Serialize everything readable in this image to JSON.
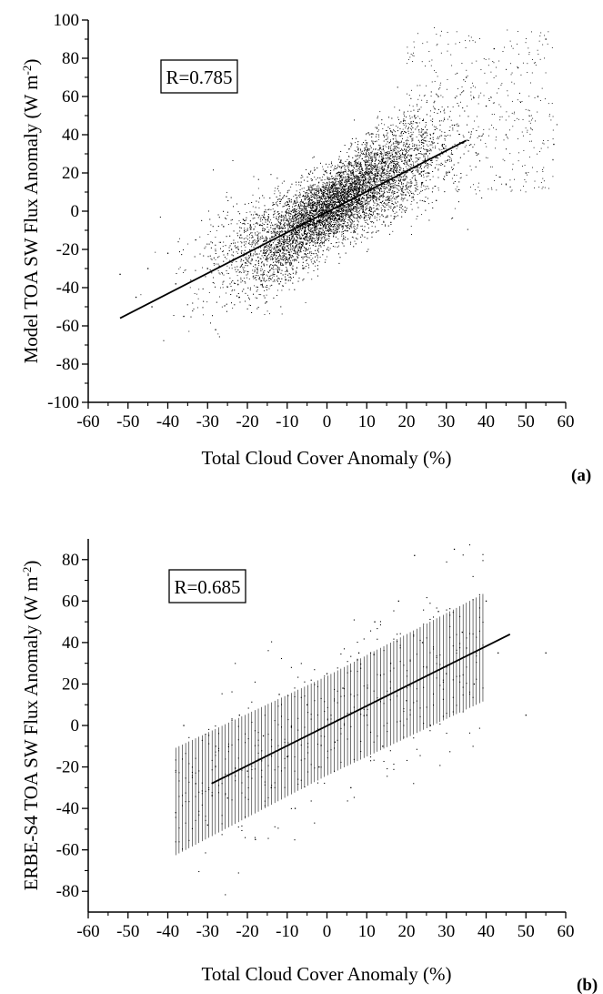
{
  "chart_data": [
    {
      "type": "scatter",
      "panel_label": "(a)",
      "xlabel": "Total Cloud Cover Anomaly (%)",
      "ylabel_main": "Model TOA SW Flux Anomaly (W m",
      "ylabel_sup": "-2",
      "ylabel_close": ")",
      "annotation": "R=0.785",
      "xlim": [
        -60,
        60
      ],
      "ylim": [
        -100,
        100
      ],
      "xticks": [
        -60,
        -50,
        -40,
        -30,
        -20,
        -10,
        0,
        10,
        20,
        30,
        40,
        50,
        60
      ],
      "yticks": [
        -100,
        -80,
        -60,
        -40,
        -20,
        0,
        20,
        40,
        60,
        80,
        100
      ],
      "xtick_labels": [
        "-60",
        "-50",
        "-40",
        "-30",
        "-20",
        "-10",
        "0",
        "10",
        "20",
        "30",
        "40",
        "50",
        "60"
      ],
      "ytick_labels": [
        "-100",
        "-80",
        "-60",
        "-40",
        "-20",
        "0",
        "20",
        "40",
        "60",
        "80",
        "100"
      ],
      "grid": false,
      "regression_line": {
        "x": [
          -52,
          35
        ],
        "y": [
          -56,
          37
        ]
      },
      "point_cloud": [
        {
          "x": -52,
          "y": -33
        },
        {
          "x": -48,
          "y": -45
        },
        {
          "x": -45,
          "y": -30
        },
        {
          "x": -44,
          "y": -50
        },
        {
          "x": -40,
          "y": -22
        },
        {
          "x": -38,
          "y": -38
        },
        {
          "x": -36,
          "y": -55
        },
        {
          "x": -33,
          "y": -15
        },
        {
          "x": -30,
          "y": -30
        },
        {
          "x": -28,
          "y": -62
        },
        {
          "x": -26,
          "y": -8
        },
        {
          "x": -24,
          "y": -20
        },
        {
          "x": -22,
          "y": -45
        },
        {
          "x": -20,
          "y": -10
        },
        {
          "x": -18,
          "y": -28
        },
        {
          "x": -16,
          "y": -3
        },
        {
          "x": -14,
          "y": -18
        },
        {
          "x": -12,
          "y": -38
        },
        {
          "x": -10,
          "y": 5
        },
        {
          "x": -8,
          "y": -12
        },
        {
          "x": -6,
          "y": -30
        },
        {
          "x": -4,
          "y": 10
        },
        {
          "x": -2,
          "y": -5
        },
        {
          "x": 0,
          "y": 15
        },
        {
          "x": 0,
          "y": -20
        },
        {
          "x": 2,
          "y": 5
        },
        {
          "x": 4,
          "y": 25
        },
        {
          "x": 6,
          "y": -8
        },
        {
          "x": 8,
          "y": 12
        },
        {
          "x": 10,
          "y": 32
        },
        {
          "x": 12,
          "y": 0
        },
        {
          "x": 14,
          "y": 20
        },
        {
          "x": 16,
          "y": 42
        },
        {
          "x": 18,
          "y": 8
        },
        {
          "x": 20,
          "y": 28
        },
        {
          "x": 22,
          "y": 50
        },
        {
          "x": 24,
          "y": 15
        },
        {
          "x": 26,
          "y": 38
        },
        {
          "x": 28,
          "y": 60
        },
        {
          "x": 30,
          "y": 20
        },
        {
          "x": 32,
          "y": 45
        },
        {
          "x": 35,
          "y": 70
        },
        {
          "x": 38,
          "y": 30
        },
        {
          "x": 40,
          "y": 55
        },
        {
          "x": 42,
          "y": 85
        },
        {
          "x": 45,
          "y": 40
        },
        {
          "x": 48,
          "y": 75
        },
        {
          "x": 50,
          "y": 20
        },
        {
          "x": 53,
          "y": 60
        },
        {
          "x": 55,
          "y": 90
        },
        {
          "x": 57,
          "y": 35
        }
      ]
    },
    {
      "type": "scatter",
      "panel_label": "(b)",
      "xlabel": "Total Cloud Cover Anomaly (%)",
      "ylabel_main": "ERBE-S4 TOA SW Flux Anomaly (W m",
      "ylabel_sup": "-2",
      "ylabel_close": ")",
      "annotation": "R=0.685",
      "xlim": [
        -60,
        60
      ],
      "ylim": [
        -90,
        90
      ],
      "xticks": [
        -60,
        -50,
        -40,
        -30,
        -20,
        -10,
        0,
        10,
        20,
        30,
        40,
        50,
        60
      ],
      "yticks": [
        -80,
        -60,
        -40,
        -20,
        0,
        20,
        40,
        60,
        80
      ],
      "xtick_labels": [
        "-60",
        "-50",
        "-40",
        "-30",
        "-20",
        "-10",
        "0",
        "10",
        "20",
        "30",
        "40",
        "50",
        "60"
      ],
      "ytick_labels": [
        "-80",
        "-60",
        "-40",
        "-20",
        "0",
        "20",
        "40",
        "60",
        "80"
      ],
      "grid": false,
      "regression_line": {
        "x": [
          -29,
          46
        ],
        "y": [
          -28,
          44
        ]
      },
      "point_cloud": [
        {
          "x": -38,
          "y": -42
        },
        {
          "x": -36,
          "y": 0
        },
        {
          "x": -33,
          "y": -28
        },
        {
          "x": -30,
          "y": -48
        },
        {
          "x": -28,
          "y": -10
        },
        {
          "x": -25,
          "y": -35
        },
        {
          "x": -22,
          "y": 5
        },
        {
          "x": -20,
          "y": -22
        },
        {
          "x": -18,
          "y": -55
        },
        {
          "x": -16,
          "y": -5
        },
        {
          "x": -14,
          "y": -30
        },
        {
          "x": -12,
          "y": 15
        },
        {
          "x": -10,
          "y": -15
        },
        {
          "x": -8,
          "y": -40
        },
        {
          "x": -5,
          "y": 10
        },
        {
          "x": -2,
          "y": -20
        },
        {
          "x": 0,
          "y": 25
        },
        {
          "x": 2,
          "y": -8
        },
        {
          "x": 4,
          "y": 18
        },
        {
          "x": 6,
          "y": -30
        },
        {
          "x": 8,
          "y": 35
        },
        {
          "x": 10,
          "y": 5
        },
        {
          "x": 12,
          "y": 50
        },
        {
          "x": 14,
          "y": -10
        },
        {
          "x": 16,
          "y": 30
        },
        {
          "x": 18,
          "y": 60
        },
        {
          "x": 20,
          "y": 12
        },
        {
          "x": 22,
          "y": 82
        },
        {
          "x": 24,
          "y": 40
        },
        {
          "x": 26,
          "y": 0
        },
        {
          "x": 28,
          "y": 55
        },
        {
          "x": 30,
          "y": 25
        },
        {
          "x": 32,
          "y": 85
        },
        {
          "x": 34,
          "y": 45
        },
        {
          "x": 37,
          "y": 20
        },
        {
          "x": 40,
          "y": 60
        },
        {
          "x": 43,
          "y": 35
        },
        {
          "x": 50,
          "y": 5
        },
        {
          "x": 55,
          "y": 35
        }
      ]
    }
  ]
}
